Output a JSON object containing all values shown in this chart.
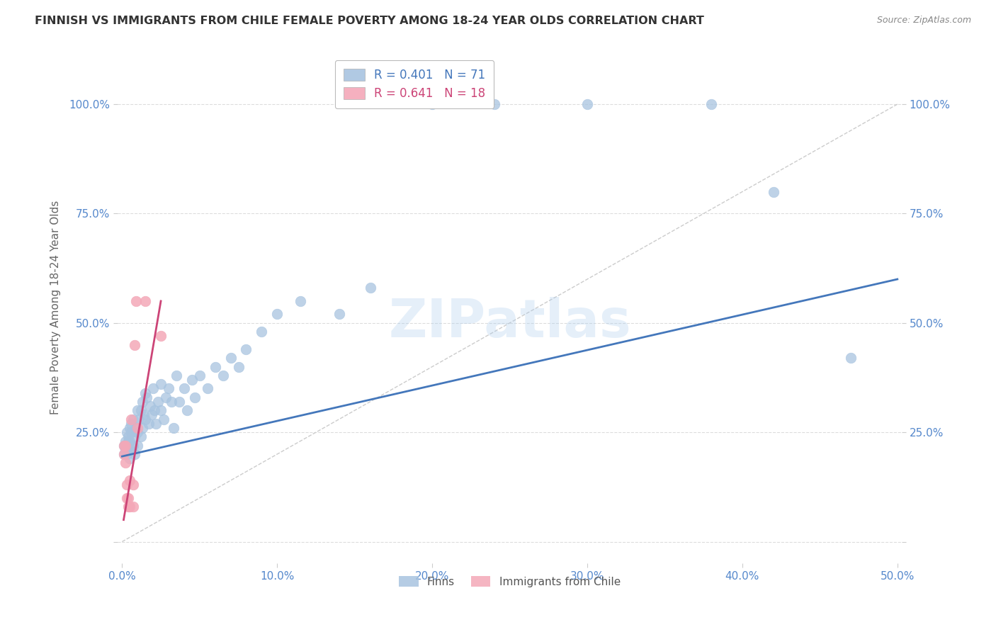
{
  "title": "FINNISH VS IMMIGRANTS FROM CHILE FEMALE POVERTY AMONG 18-24 YEAR OLDS CORRELATION CHART",
  "source": "Source: ZipAtlas.com",
  "ylabel": "Female Poverty Among 18-24 Year Olds",
  "xlim": [
    -0.003,
    0.503
  ],
  "ylim": [
    -0.05,
    1.12
  ],
  "xticks": [
    0.0,
    0.1,
    0.2,
    0.3,
    0.4,
    0.5
  ],
  "yticks": [
    0.0,
    0.25,
    0.5,
    0.75,
    1.0
  ],
  "ytick_labels": [
    "",
    "25.0%",
    "50.0%",
    "75.0%",
    "100.0%"
  ],
  "xtick_labels": [
    "0.0%",
    "10.0%",
    "20.0%",
    "30.0%",
    "40.0%",
    "50.0%"
  ],
  "blue_color": "#a8c4e0",
  "pink_color": "#f4a8b8",
  "blue_line_color": "#4477bb",
  "pink_line_color": "#cc4477",
  "diag_color": "#cccccc",
  "axis_color": "#5588cc",
  "legend_R_blue": "0.401",
  "legend_N_blue": "71",
  "legend_R_pink": "0.641",
  "legend_N_pink": "18",
  "legend_label_blue": "Finns",
  "legend_label_pink": "Immigrants from Chile",
  "watermark": "ZIPatlas",
  "finns_x": [
    0.001,
    0.001,
    0.002,
    0.002,
    0.003,
    0.003,
    0.003,
    0.004,
    0.004,
    0.004,
    0.005,
    0.005,
    0.005,
    0.005,
    0.006,
    0.006,
    0.007,
    0.007,
    0.008,
    0.008,
    0.009,
    0.01,
    0.01,
    0.01,
    0.011,
    0.012,
    0.012,
    0.013,
    0.013,
    0.014,
    0.015,
    0.015,
    0.016,
    0.017,
    0.018,
    0.019,
    0.02,
    0.021,
    0.022,
    0.023,
    0.025,
    0.025,
    0.027,
    0.028,
    0.03,
    0.032,
    0.033,
    0.035,
    0.037,
    0.04,
    0.042,
    0.045,
    0.047,
    0.05,
    0.055,
    0.06,
    0.065,
    0.07,
    0.075,
    0.08,
    0.09,
    0.1,
    0.115,
    0.14,
    0.16,
    0.2,
    0.24,
    0.3,
    0.38,
    0.42,
    0.47
  ],
  "finns_y": [
    0.22,
    0.2,
    0.23,
    0.21,
    0.25,
    0.22,
    0.2,
    0.24,
    0.21,
    0.23,
    0.26,
    0.23,
    0.21,
    0.19,
    0.27,
    0.25,
    0.28,
    0.22,
    0.24,
    0.2,
    0.26,
    0.3,
    0.25,
    0.22,
    0.28,
    0.3,
    0.24,
    0.32,
    0.26,
    0.29,
    0.34,
    0.28,
    0.33,
    0.27,
    0.31,
    0.29,
    0.35,
    0.3,
    0.27,
    0.32,
    0.36,
    0.3,
    0.28,
    0.33,
    0.35,
    0.32,
    0.26,
    0.38,
    0.32,
    0.35,
    0.3,
    0.37,
    0.33,
    0.38,
    0.35,
    0.4,
    0.38,
    0.42,
    0.4,
    0.44,
    0.48,
    0.52,
    0.55,
    0.52,
    0.58,
    1.0,
    1.0,
    1.0,
    1.0,
    0.8,
    0.42
  ],
  "chile_x": [
    0.001,
    0.001,
    0.002,
    0.002,
    0.003,
    0.003,
    0.004,
    0.004,
    0.005,
    0.005,
    0.006,
    0.007,
    0.007,
    0.008,
    0.009,
    0.01,
    0.015,
    0.025
  ],
  "chile_y": [
    0.22,
    0.2,
    0.22,
    0.18,
    0.13,
    0.1,
    0.1,
    0.08,
    0.14,
    0.08,
    0.28,
    0.13,
    0.08,
    0.45,
    0.55,
    0.26,
    0.55,
    0.47
  ],
  "blue_trend_x0": 0.0,
  "blue_trend_y0": 0.195,
  "blue_trend_x1": 0.5,
  "blue_trend_y1": 0.6,
  "pink_trend_x0": 0.001,
  "pink_trend_y0": 0.05,
  "pink_trend_x1": 0.025,
  "pink_trend_y1": 0.55
}
